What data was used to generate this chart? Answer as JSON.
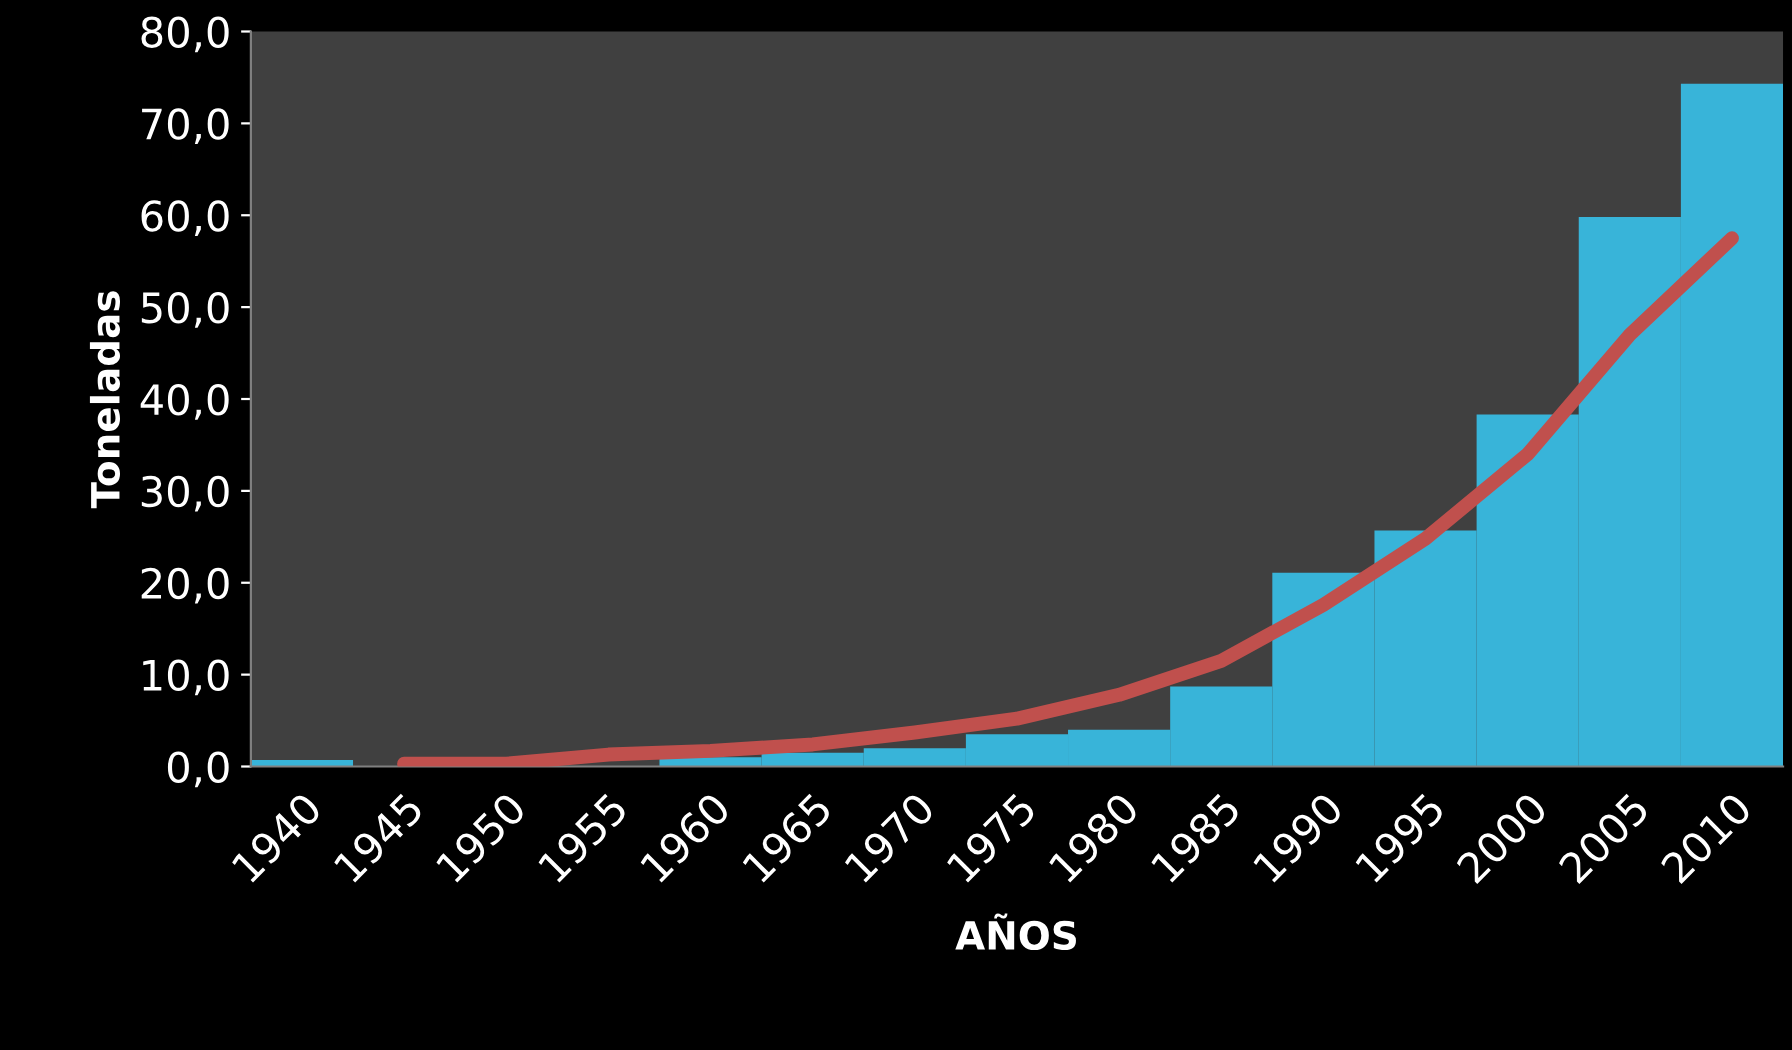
{
  "chart_data": {
    "type": "bar",
    "xlabel": "AÑOS",
    "ylabel": "Toneladas",
    "categories": [
      "1940",
      "1945",
      "1950",
      "1955",
      "1960",
      "1965",
      "1970",
      "1975",
      "1980",
      "1985",
      "1990",
      "1995",
      "2000",
      "2005",
      "2010"
    ],
    "series": [
      {
        "color": "#38b4d9",
        "values": [
          0.7,
          0,
          0,
          null,
          1.0,
          1.5,
          2.0,
          3.5,
          4.0,
          8.7,
          21.1,
          25.7,
          38.3,
          59.8,
          74.3
        ]
      },
      {
        "type": "line",
        "color": "#c0504d",
        "values": [
          null,
          0.3,
          0.3,
          1.3,
          1.7,
          2.4,
          3.7,
          5.2,
          7.8,
          11.5,
          17.6,
          24.8,
          34.0,
          47.0,
          57.5
        ]
      }
    ],
    "ylim": [
      0,
      80
    ],
    "yticks": [
      {
        "value": 0,
        "label": "0,0"
      },
      {
        "value": 10,
        "label": "10,0"
      },
      {
        "value": 20,
        "label": "20,0"
      },
      {
        "value": 30,
        "label": "30,0"
      },
      {
        "value": 40,
        "label": "40,0"
      },
      {
        "value": 50,
        "label": "50,0"
      },
      {
        "value": 60,
        "label": "60,0"
      },
      {
        "value": 70,
        "label": "70,0"
      },
      {
        "value": 80,
        "label": "80,0"
      }
    ],
    "grid": false,
    "legend": false,
    "marker": "none",
    "line_style": "solid"
  }
}
